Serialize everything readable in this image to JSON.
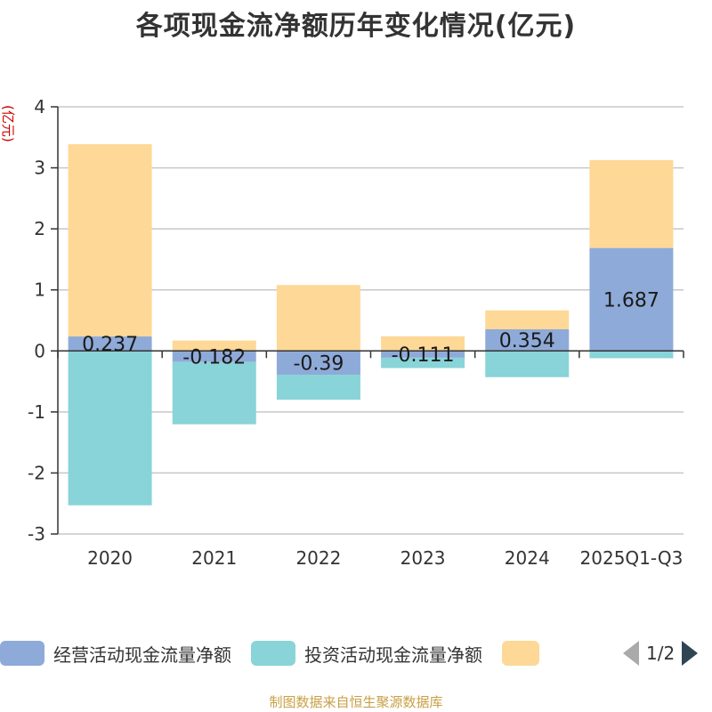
{
  "chart_data": {
    "type": "bar",
    "stacked": true,
    "title": "各项现金流净额历年变化情况(亿元)",
    "ylabel": "(亿元)",
    "xlabel": "",
    "ylim": [
      -3,
      4
    ],
    "yticks": [
      4,
      3,
      2,
      1,
      0,
      -1,
      -2,
      -3
    ],
    "grid": true,
    "categories": [
      "2020",
      "2021",
      "2022",
      "2023",
      "2024",
      "2025Q1-Q3"
    ],
    "series": [
      {
        "name": "经营活动现金流量净额",
        "color": "#8eaad8",
        "values": [
          0.237,
          -0.182,
          -0.39,
          -0.111,
          0.354,
          1.687
        ],
        "labels": [
          "0.237",
          "-0.182",
          "-0.39",
          "-0.111",
          "0.354",
          "1.687"
        ]
      },
      {
        "name": "投资活动现金流量净额",
        "color": "#88d4d8",
        "values": [
          -2.53,
          -1.02,
          -0.41,
          -0.17,
          -0.43,
          -0.12
        ]
      },
      {
        "name": "",
        "color": "#fdd897",
        "values": [
          3.15,
          0.17,
          1.08,
          0.24,
          0.31,
          1.44
        ]
      }
    ],
    "legend": {
      "position": "bottom",
      "page": "1/2"
    }
  },
  "source_note": "制图数据来自恒生聚源数据库"
}
